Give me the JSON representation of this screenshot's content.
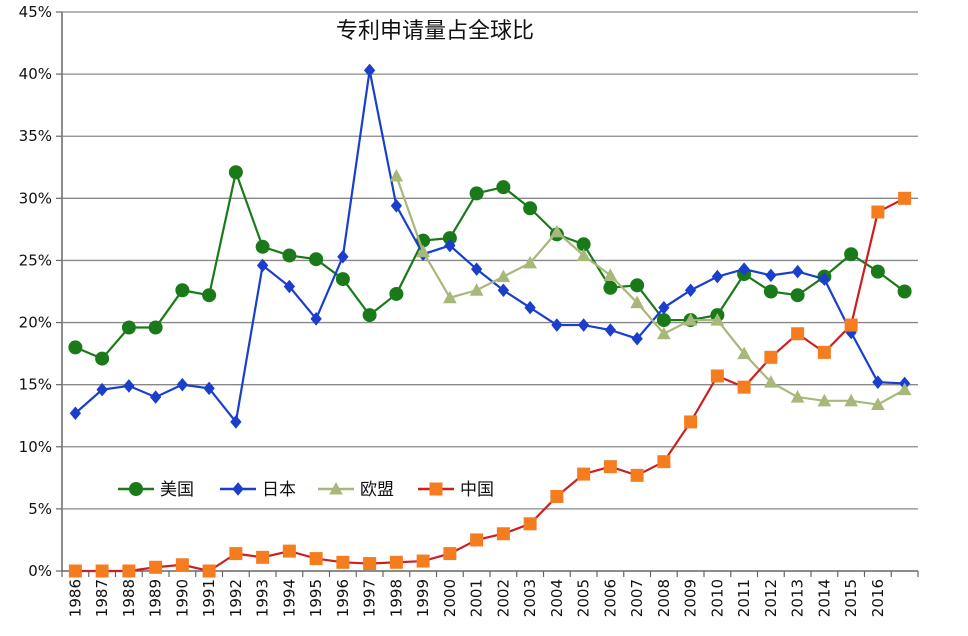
{
  "chart_data": {
    "type": "line",
    "title": "专利申请量占全球比",
    "ylim": [
      0,
      45
    ],
    "y_ticks": [
      "0%",
      "5%",
      "10%",
      "15%",
      "20%",
      "25%",
      "30%",
      "35%",
      "40%",
      "45%"
    ],
    "categories": [
      "1986",
      "1987",
      "1988",
      "1989",
      "1990",
      "1991",
      "1992",
      "1993",
      "1994",
      "1995",
      "1996",
      "1997",
      "1998",
      "1999",
      "2000",
      "2001",
      "2002",
      "2003",
      "2004",
      "2005",
      "2006",
      "2007",
      "2008",
      "2009",
      "2010",
      "2011",
      "2012",
      "2013",
      "2014",
      "2015",
      "2016",
      ""
    ],
    "grid": true,
    "legend_position": "lower-left",
    "series": [
      {
        "name": "美国",
        "color": "#1a7a1a",
        "marker": "circle",
        "values": [
          18.0,
          17.1,
          19.6,
          19.6,
          22.6,
          22.2,
          32.1,
          26.1,
          25.4,
          25.1,
          23.5,
          20.6,
          22.3,
          26.6,
          26.8,
          30.4,
          30.9,
          29.2,
          27.1,
          26.3,
          22.8,
          23.0,
          20.2,
          20.2,
          20.6,
          23.9,
          22.5,
          22.2,
          23.7,
          25.5,
          24.1,
          22.5
        ]
      },
      {
        "name": "日本",
        "color": "#1a3fcc",
        "marker": "diamond",
        "values": [
          12.7,
          14.6,
          14.9,
          14.0,
          15.0,
          14.7,
          12.0,
          24.6,
          22.9,
          20.3,
          25.3,
          40.3,
          29.4,
          25.5,
          26.2,
          24.3,
          22.6,
          21.2,
          19.8,
          19.8,
          19.4,
          18.7,
          21.2,
          22.6,
          23.7,
          24.3,
          23.8,
          24.1,
          23.5,
          19.2,
          15.2,
          15.1
        ]
      },
      {
        "name": "欧盟",
        "color": "#a8b87a",
        "marker": "triangle",
        "values": [
          null,
          null,
          null,
          null,
          null,
          null,
          null,
          null,
          null,
          null,
          null,
          null,
          31.8,
          25.7,
          22.0,
          22.6,
          23.7,
          24.8,
          27.3,
          25.4,
          23.8,
          21.6,
          19.1,
          20.2,
          20.2,
          17.5,
          15.2,
          14.0,
          13.7,
          13.7,
          13.4,
          14.6
        ]
      },
      {
        "name": "中国",
        "color": "#cc2020",
        "marker": "square",
        "marker_color": "#f57d20",
        "values": [
          0.0,
          0.0,
          0.0,
          0.3,
          0.5,
          0.0,
          1.4,
          1.1,
          1.6,
          1.0,
          0.7,
          0.6,
          0.7,
          0.8,
          1.4,
          2.5,
          3.0,
          3.8,
          6.0,
          7.8,
          8.4,
          7.7,
          8.8,
          12.0,
          15.7,
          14.8,
          17.2,
          19.1,
          17.6,
          19.8,
          28.9,
          30.0
        ]
      }
    ]
  }
}
